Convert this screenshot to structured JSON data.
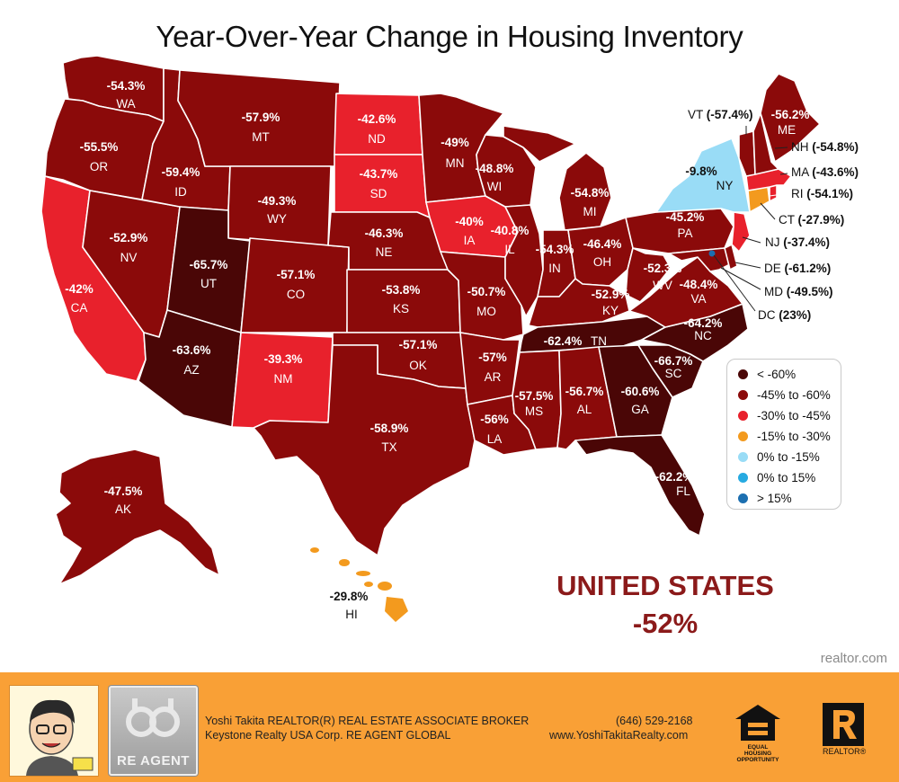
{
  "title": "Year-Over-Year Change in Housing Inventory",
  "states": {
    "WA": {
      "abbr": "WA",
      "value": "-54.3%"
    },
    "OR": {
      "abbr": "OR",
      "value": "-55.5%"
    },
    "CA": {
      "abbr": "CA",
      "value": "-42%"
    },
    "NV": {
      "abbr": "NV",
      "value": "-52.9%"
    },
    "ID": {
      "abbr": "ID",
      "value": "-59.4%"
    },
    "MT": {
      "abbr": "MT",
      "value": "-57.9%"
    },
    "WY": {
      "abbr": "WY",
      "value": "-49.3%"
    },
    "UT": {
      "abbr": "UT",
      "value": "-65.7%"
    },
    "AZ": {
      "abbr": "AZ",
      "value": "-63.6%"
    },
    "CO": {
      "abbr": "CO",
      "value": "-57.1%"
    },
    "NM": {
      "abbr": "NM",
      "value": "-39.3%"
    },
    "ND": {
      "abbr": "ND",
      "value": "-42.6%"
    },
    "SD": {
      "abbr": "SD",
      "value": "-43.7%"
    },
    "NE": {
      "abbr": "NE",
      "value": "-46.3%"
    },
    "KS": {
      "abbr": "KS",
      "value": "-53.8%"
    },
    "OK": {
      "abbr": "OK",
      "value": "-57.1%"
    },
    "TX": {
      "abbr": "TX",
      "value": "-58.9%"
    },
    "MN": {
      "abbr": "MN",
      "value": "-49%"
    },
    "IA": {
      "abbr": "IA",
      "value": "-40%"
    },
    "MO": {
      "abbr": "MO",
      "value": "-50.7%"
    },
    "AR": {
      "abbr": "AR",
      "value": "-57%"
    },
    "LA": {
      "abbr": "LA",
      "value": "-56%"
    },
    "WI": {
      "abbr": "WI",
      "value": "-48.8%"
    },
    "IL": {
      "abbr": "IL",
      "value": "-40.8%"
    },
    "MI": {
      "abbr": "MI",
      "value": "-54.8%"
    },
    "IN": {
      "abbr": "IN",
      "value": "-54.3%"
    },
    "OH": {
      "abbr": "OH",
      "value": "-46.4%"
    },
    "KY": {
      "abbr": "KY",
      "value": "-52.9%"
    },
    "TN": {
      "abbr": "TN",
      "value": "-62.4%"
    },
    "MS": {
      "abbr": "MS",
      "value": "-57.5%"
    },
    "AL": {
      "abbr": "AL",
      "value": "-56.7%"
    },
    "GA": {
      "abbr": "GA",
      "value": "-60.6%"
    },
    "FL": {
      "abbr": "FL",
      "value": "-62.2%"
    },
    "SC": {
      "abbr": "SC",
      "value": "-66.7%"
    },
    "NC": {
      "abbr": "NC",
      "value": "-64.2%"
    },
    "VA": {
      "abbr": "VA",
      "value": "-48.4%"
    },
    "WV": {
      "abbr": "WV",
      "value": "-52.3%"
    },
    "PA": {
      "abbr": "PA",
      "value": "-45.2%"
    },
    "NY": {
      "abbr": "NY",
      "value": "-9.8%"
    },
    "ME": {
      "abbr": "ME",
      "value": "-56.2%"
    },
    "AK": {
      "abbr": "AK",
      "value": "-47.5%"
    },
    "HI": {
      "abbr": "HI",
      "value": "-29.8%"
    }
  },
  "callouts": {
    "VT": {
      "abbr": "VT",
      "value": "(-57.4%)"
    },
    "NH": {
      "abbr": "NH",
      "value": "(-54.8%)"
    },
    "MA": {
      "abbr": "MA",
      "value": "(-43.6%)"
    },
    "RI": {
      "abbr": "RI",
      "value": "(-54.1%)"
    },
    "CT": {
      "abbr": "CT",
      "value": "(-27.9%)"
    },
    "NJ": {
      "abbr": "NJ",
      "value": "(-37.4%)"
    },
    "DE": {
      "abbr": "DE",
      "value": "(-61.2%)"
    },
    "MD": {
      "abbr": "MD",
      "value": "(-49.5%)"
    },
    "DC": {
      "abbr": "DC",
      "value": "(23%)"
    }
  },
  "legend": [
    {
      "label": "< -60%",
      "color": "#4a0606"
    },
    {
      "label": "-45% to -60%",
      "color": "#8b0a0a"
    },
    {
      "label": "-30% to -45%",
      "color": "#e8212c"
    },
    {
      "label": "-15% to -30%",
      "color": "#f39a1e"
    },
    {
      "label": "0% to -15%",
      "color": "#99dcf6"
    },
    {
      "label": "0% to 15%",
      "color": "#27aae1"
    },
    {
      "label": "> 15%",
      "color": "#1c6fb0"
    }
  ],
  "colors": {
    "lt60": "#4a0606",
    "m45_60": "#8b0a0a",
    "m30_45": "#e8212c",
    "m15_30": "#f39a1e",
    "p0_m15": "#99dcf6",
    "p0_15": "#27aae1",
    "gt15": "#1c6fb0"
  },
  "national": {
    "name": "UNITED STATES",
    "value": "-52%"
  },
  "source": "realtor.com",
  "footer": {
    "agent_line": "Yoshi Takita REALTOR(R) REAL ESTATE ASSOCIATE BROKER",
    "company_line": "Keystone Realty USA Corp.  RE AGENT GLOBAL",
    "phone": "(646) 529-2168",
    "website": "www.YoshiTakitaRealty.com",
    "reagent_logo": "RE AGENT",
    "eho_text": "EQUAL HOUSING OPPORTUNITY",
    "realtor_mark": "REALTOR®",
    "avatar_icon": "caricature-avatar-icon"
  }
}
